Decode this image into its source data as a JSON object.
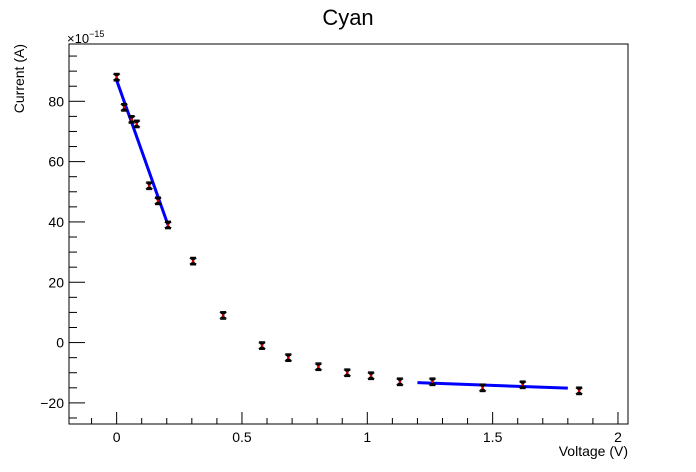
{
  "chart_data": {
    "type": "scatter",
    "title": "Cyan",
    "xlabel": "Voltage (V)",
    "ylabel": "Current (A)",
    "y_multiplier_label": "×10",
    "y_multiplier_exponent": "−15",
    "xlim": [
      -0.19,
      2.04
    ],
    "ylim": [
      -27,
      99
    ],
    "x_ticks": [
      0,
      0.5,
      1,
      1.5,
      2
    ],
    "x_tick_labels": [
      "0",
      "0.5",
      "1",
      "1.5",
      "2"
    ],
    "y_ticks": [
      -20,
      0,
      20,
      40,
      60,
      80
    ],
    "y_tick_labels": [
      "−20",
      "0",
      "20",
      "40",
      "60",
      "80"
    ],
    "grid": false,
    "series": [
      {
        "kind": "points",
        "color": "#000000",
        "marker_color": "#cc0000",
        "error_y": 1.2,
        "points": [
          {
            "x": 0.0,
            "y": 88
          },
          {
            "x": 0.03,
            "y": 78
          },
          {
            "x": 0.06,
            "y": 74
          },
          {
            "x": 0.08,
            "y": 72.5
          },
          {
            "x": 0.13,
            "y": 52
          },
          {
            "x": 0.165,
            "y": 47
          },
          {
            "x": 0.205,
            "y": 39
          },
          {
            "x": 0.305,
            "y": 27
          },
          {
            "x": 0.425,
            "y": 9
          },
          {
            "x": 0.58,
            "y": -1
          },
          {
            "x": 0.685,
            "y": -5
          },
          {
            "x": 0.805,
            "y": -8
          },
          {
            "x": 0.92,
            "y": -10
          },
          {
            "x": 1.015,
            "y": -11
          },
          {
            "x": 1.13,
            "y": -13
          },
          {
            "x": 1.26,
            "y": -13
          },
          {
            "x": 1.46,
            "y": -15
          },
          {
            "x": 1.62,
            "y": -14
          },
          {
            "x": 1.845,
            "y": -16
          }
        ]
      }
    ],
    "fit_lines": [
      {
        "color": "#0000ff",
        "x": [
          0.0,
          0.205
        ],
        "y": [
          87,
          39
        ]
      },
      {
        "color": "#0000ff",
        "x": [
          1.2,
          1.8
        ],
        "y": [
          -13.3,
          -15.1
        ]
      }
    ]
  }
}
